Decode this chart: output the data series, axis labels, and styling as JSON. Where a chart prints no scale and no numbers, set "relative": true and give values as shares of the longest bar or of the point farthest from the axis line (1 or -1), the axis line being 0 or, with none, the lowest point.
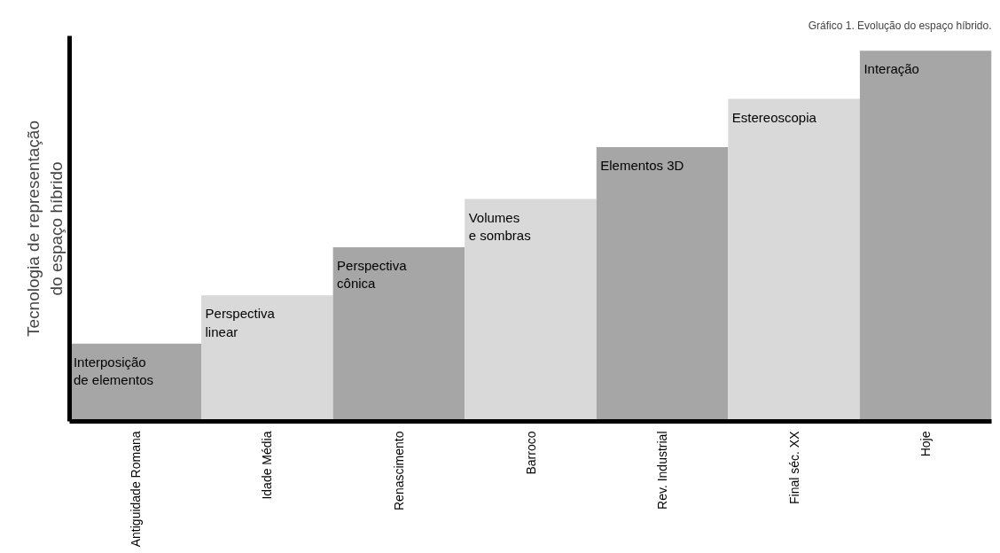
{
  "chart_data": {
    "type": "bar",
    "relative": true,
    "title": "Gráfico 1. Evolução do espaço híbrido.",
    "ylabel": "Tecnologia de representação do espaço híbrido",
    "categories": [
      "Antiguidade Romana",
      "Idade Média",
      "Renascimento",
      "Barroco",
      "Rev. Industrial",
      "Final séc. XX",
      "Hoje"
    ],
    "values": [
      0.21,
      0.34,
      0.47,
      0.6,
      0.74,
      0.87,
      1.0
    ],
    "colors": [
      "#a6a6a6",
      "#d9d9d9",
      "#a6a6a6",
      "#d9d9d9",
      "#a6a6a6",
      "#d9d9d9",
      "#a6a6a6"
    ],
    "annotations": [
      {
        "text": "Interposição\nde elementos",
        "x": "Antiguidade Romana",
        "y": 0.21
      },
      {
        "text": "Perspectiva\nlinear",
        "x": "Idade Média",
        "y": 0.34
      },
      {
        "text": "Perspectiva\ncônica",
        "x": "Renascimento",
        "y": 0.47
      },
      {
        "text": "Volumes\ne sombras",
        "x": "Barroco",
        "y": 0.6
      },
      {
        "text": "Elementos 3D",
        "x": "Rev. Industrial",
        "y": 0.74
      },
      {
        "text": "Estereoscopia",
        "x": "Final séc. XX",
        "y": 0.87
      },
      {
        "text": "Interação",
        "x": "Hoje",
        "y": 1.0
      }
    ],
    "grid": false
  }
}
